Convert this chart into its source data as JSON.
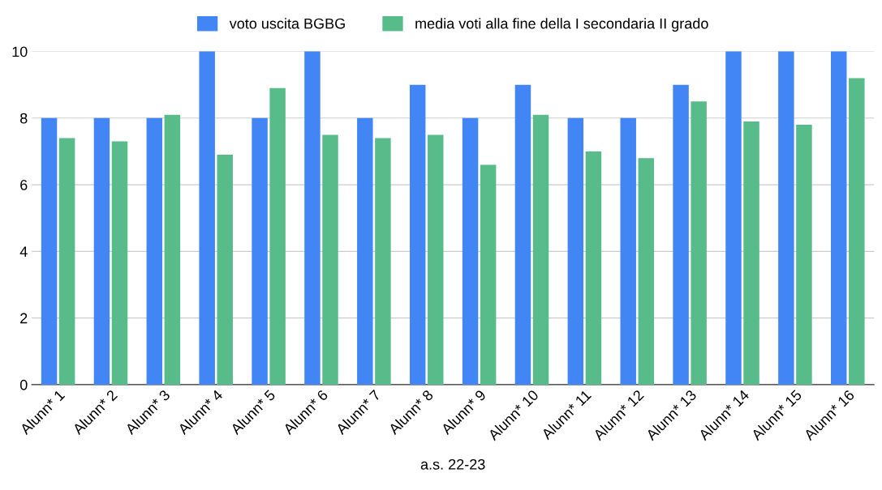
{
  "chart_data": {
    "type": "bar",
    "xlabel": "a.s. 22-23",
    "categories": [
      "Alunn* 1",
      "Alunn* 2",
      "Alunn* 3",
      "Alunn* 4",
      "Alunn* 5",
      "Alunn* 6",
      "Alunn* 7",
      "Alunn* 8",
      "Alunn* 9",
      "Alunn* 10",
      "Alunn* 11",
      "Alunn* 12",
      "Alunn* 13",
      "Alunn* 14",
      "Alunn* 15",
      "Alunn* 16"
    ],
    "series": [
      {
        "name": "voto uscita BGBG",
        "color": "#4285f4",
        "values": [
          8,
          8,
          8,
          10,
          8,
          10,
          8,
          9,
          8,
          9,
          8,
          8,
          9,
          10,
          10,
          10
        ]
      },
      {
        "name": "media voti alla fine della I secondaria II grado",
        "color": "#57bb8a",
        "values": [
          7.4,
          7.3,
          8.1,
          6.9,
          8.9,
          7.5,
          7.4,
          7.5,
          6.6,
          8.1,
          7.0,
          6.8,
          8.5,
          7.9,
          7.8,
          9.2
        ]
      }
    ],
    "ylim": [
      0,
      10
    ],
    "yticks": [
      0,
      2,
      4,
      6,
      8,
      10
    ],
    "grid": "y",
    "legend": "top"
  }
}
